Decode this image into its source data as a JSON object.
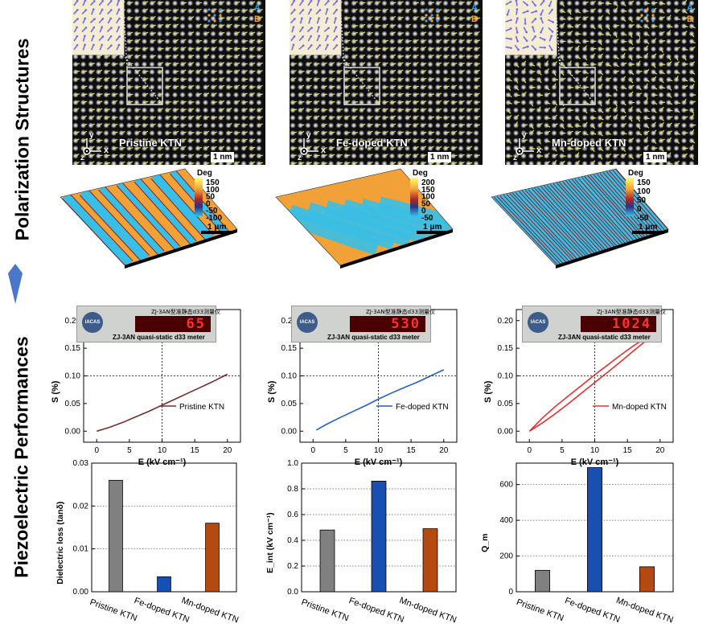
{
  "side_titles": {
    "top": "Polarization Structures",
    "bottom": "Piezoelectric Performances"
  },
  "stem_panels": [
    {
      "label": "Pristine KTN",
      "scale": "1 nm",
      "site_a": "A",
      "site_b": "B",
      "axis_x": "x",
      "axis_y": "y",
      "axis_z": "z"
    },
    {
      "label": "Fe-doped KTN",
      "scale": "1 nm",
      "site_a": "A",
      "site_b": "B",
      "axis_x": "x",
      "axis_y": "y",
      "axis_z": "z"
    },
    {
      "label": "Mn-doped KTN",
      "scale": "1 nm",
      "site_a": "A",
      "site_b": "B",
      "axis_x": "x",
      "axis_y": "y",
      "axis_z": "z"
    }
  ],
  "pfm_panels": [
    {
      "unit": "Deg",
      "ticks": [
        "150",
        "100",
        "50",
        "0",
        "-50",
        "-100"
      ],
      "scale": "1 μm"
    },
    {
      "unit": "Deg",
      "ticks": [
        "200",
        "150",
        "100",
        "50",
        "0",
        "-50"
      ],
      "scale": "1 μm"
    },
    {
      "unit": "Deg",
      "ticks": [
        "150",
        "100",
        "50",
        "0",
        "-50"
      ],
      "scale": "1 μm"
    }
  ],
  "meter": {
    "cn_title": "ZJ-3AN型准静态d33测量仪",
    "caption": "ZJ-3AN quasi-static d33 meter",
    "logo": "IACAS",
    "readings": [
      "65",
      "530",
      "1024"
    ]
  },
  "chart_data": [
    {
      "type": "line",
      "xlabel": "E (kV cm⁻¹)",
      "ylabel": "S (%)",
      "xlim": [
        -2,
        22
      ],
      "ylim": [
        -0.02,
        0.22
      ],
      "xticks": [
        0,
        5,
        10,
        15,
        20
      ],
      "yticks": [
        0.0,
        0.05,
        0.1,
        0.15,
        0.2
      ],
      "reference_lines": {
        "x": 10,
        "y": 0.1
      },
      "series": [
        {
          "name": "Pristine KTN",
          "color": "#7a2b2b",
          "x": [
            0,
            2,
            4,
            6,
            8,
            10,
            12,
            14,
            16,
            18,
            20
          ],
          "y": [
            0.0,
            0.007,
            0.016,
            0.026,
            0.036,
            0.047,
            0.058,
            0.069,
            0.08,
            0.091,
            0.103
          ]
        }
      ]
    },
    {
      "type": "line",
      "xlabel": "E (kV cm⁻¹)",
      "ylabel": "S (%)",
      "xlim": [
        -2,
        22
      ],
      "ylim": [
        -0.02,
        0.22
      ],
      "xticks": [
        0,
        5,
        10,
        15,
        20
      ],
      "yticks": [
        0.0,
        0.05,
        0.1,
        0.15,
        0.2
      ],
      "reference_lines": {
        "x": 10,
        "y": 0.1
      },
      "series": [
        {
          "name": "Fe-doped KTN",
          "color": "#1f5fd0",
          "x": [
            0.5,
            2,
            4,
            6,
            8,
            10,
            12,
            14,
            16,
            18,
            20
          ],
          "y": [
            0.002,
            0.012,
            0.024,
            0.035,
            0.046,
            0.058,
            0.069,
            0.079,
            0.089,
            0.1,
            0.111
          ]
        }
      ]
    },
    {
      "type": "line",
      "xlabel": "E (kV cm⁻¹)",
      "ylabel": "S (%)",
      "xlim": [
        -2,
        22
      ],
      "ylim": [
        -0.02,
        0.22
      ],
      "xticks": [
        0,
        5,
        10,
        15,
        20
      ],
      "yticks": [
        0.0,
        0.05,
        0.1,
        0.15,
        0.2
      ],
      "reference_lines": {
        "x": 10,
        "y": 0.1
      },
      "series": [
        {
          "name": "Mn-doped KTN",
          "color": "#e83030",
          "x": [
            0,
            2,
            4,
            6,
            8,
            10,
            12,
            14,
            16,
            18,
            20
          ],
          "y_up": [
            0.0,
            0.015,
            0.032,
            0.05,
            0.069,
            0.088,
            0.107,
            0.126,
            0.146,
            0.165,
            0.184
          ],
          "y_down": [
            0.0,
            0.024,
            0.045,
            0.064,
            0.083,
            0.102,
            0.12,
            0.138,
            0.155,
            0.17,
            0.184
          ]
        }
      ]
    },
    {
      "type": "bar",
      "ylabel": "Dielectric loss (tanδ)",
      "categories": [
        "Pristine KTN",
        "Fe-doped KTN",
        "Mn-doped KTN"
      ],
      "values": [
        0.026,
        0.0035,
        0.016
      ],
      "colors": [
        "#808080",
        "#1750b0",
        "#b54a10"
      ],
      "ylim": [
        0,
        0.03
      ],
      "yticks": [
        "0.00",
        "0.01",
        "0.02",
        "0.03"
      ],
      "ytick_values": [
        0,
        0.01,
        0.02,
        0.03
      ]
    },
    {
      "type": "bar",
      "ylabel": "E_int (kV cm⁻¹)",
      "categories": [
        "Pristine KTN",
        "Fe-doped KTN",
        "Mn-doped KTN"
      ],
      "values": [
        0.48,
        0.86,
        0.49
      ],
      "colors": [
        "#808080",
        "#1750b0",
        "#b54a10"
      ],
      "ylim": [
        0,
        1.0
      ],
      "yticks": [
        "0.0",
        "0.2",
        "0.4",
        "0.6",
        "0.8",
        "1.0"
      ],
      "ytick_values": [
        0,
        0.2,
        0.4,
        0.6,
        0.8,
        1.0
      ]
    },
    {
      "type": "bar",
      "ylabel": "Q_m",
      "categories": [
        "Pristine KTN",
        "Fe-doped KTN",
        "Mn-doped KTN"
      ],
      "values": [
        120,
        695,
        140
      ],
      "colors": [
        "#808080",
        "#1750b0",
        "#b54a10"
      ],
      "ylim": [
        0,
        720
      ],
      "yticks": [
        "0",
        "200",
        "400",
        "600"
      ],
      "ytick_values": [
        0,
        200,
        400,
        600
      ]
    }
  ]
}
